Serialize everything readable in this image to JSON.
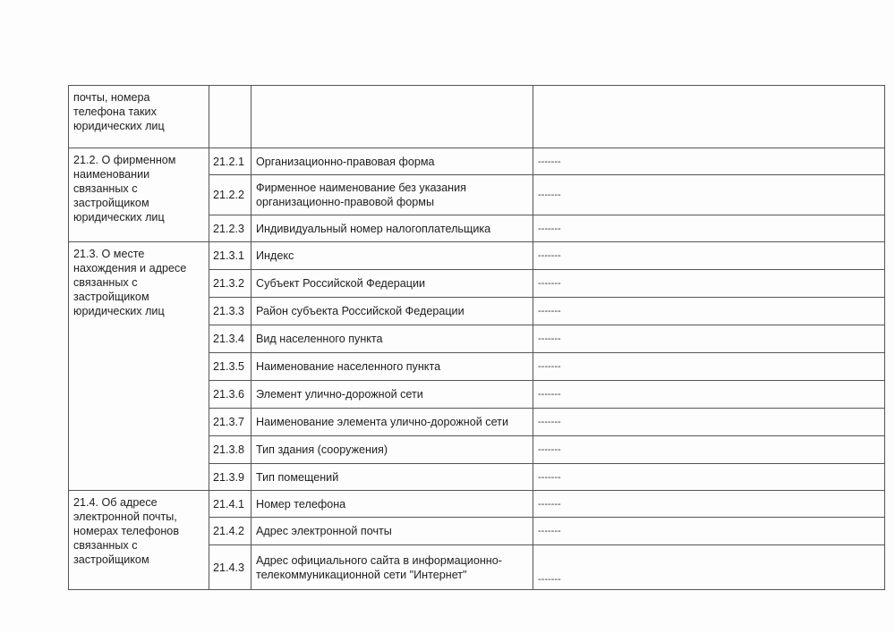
{
  "table": {
    "continuation": {
      "section": "почты, номера телефона таких юридических лиц"
    },
    "sections": [
      {
        "title": "21.2. О фирменном наименовании связанных с застройщиком юридических лиц",
        "rows": [
          {
            "num": "21.2.1",
            "label": "Организационно-правовая форма",
            "value": "-------"
          },
          {
            "num": "21.2.2",
            "label": "Фирменное наименование без указания организационно-правовой формы",
            "value": "-------"
          },
          {
            "num": "21.2.3",
            "label": "Индивидуальный номер налогоплательщика",
            "value": "-------"
          }
        ]
      },
      {
        "title": "21.3. О месте нахождения и адресе связанных с застройщиком юридических лиц",
        "rows": [
          {
            "num": "21.3.1",
            "label": "Индекс",
            "value": "-------"
          },
          {
            "num": "21.3.2",
            "label": "Субъект Российской Федерации",
            "value": "-------"
          },
          {
            "num": "21.3.3",
            "label": "Район субъекта Российской Федерации",
            "value": "-------"
          },
          {
            "num": "21.3.4",
            "label": "Вид населенного пункта",
            "value": "-------"
          },
          {
            "num": "21.3.5",
            "label": "Наименование населенного пункта",
            "value": "-------"
          },
          {
            "num": "21.3.6",
            "label": "Элемент улично-дорожной сети",
            "value": "-------"
          },
          {
            "num": "21.3.7",
            "label": "Наименование элемента улично-дорожной сети",
            "value": "-------"
          },
          {
            "num": "21.3.8",
            "label": "Тип здания (сооружения)",
            "value": "-------"
          },
          {
            "num": "21.3.9",
            "label": "Тип помещений",
            "value": "-------"
          }
        ]
      },
      {
        "title": "21.4. Об адресе электронной почты, номерах телефонов связанных с застройщиком",
        "rows": [
          {
            "num": "21.4.1",
            "label": "Номер телефона",
            "value": "-------"
          },
          {
            "num": "21.4.2",
            "label": "Адрес электронной почты",
            "value": "-------"
          },
          {
            "num": "21.4.3",
            "label": "Адрес официального сайта в информационно-телекоммуникационной сети \"Интернет\"",
            "value": "-------"
          }
        ]
      }
    ]
  }
}
